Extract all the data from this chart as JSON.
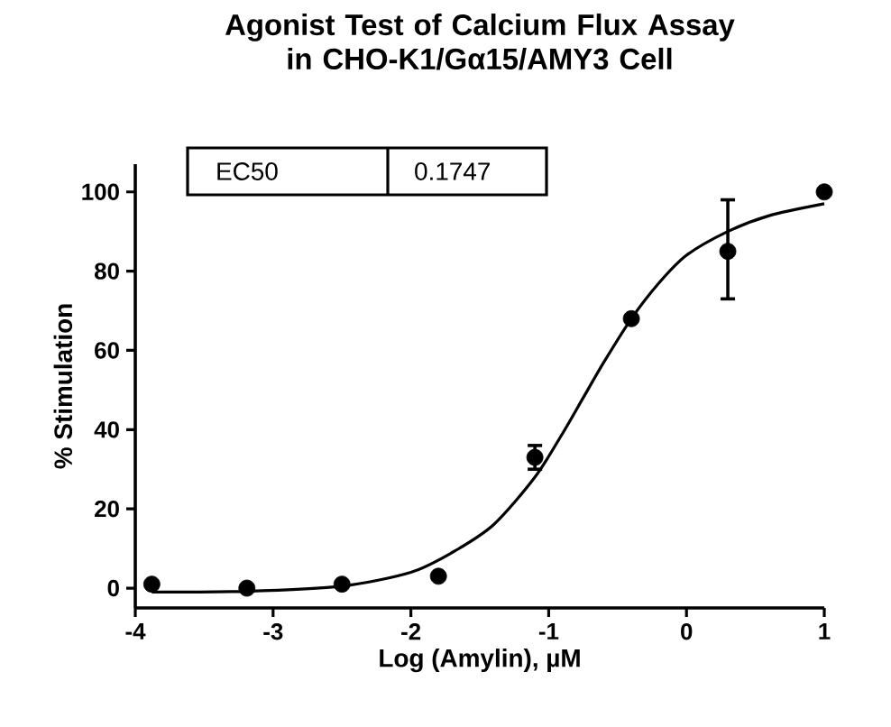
{
  "chart_data": {
    "type": "scatter",
    "title": "Agonist Test of Calcium Flux Assay\nin CHO-K1/Gα15/AMY3  Cell",
    "xlabel": "Log (Amylin), µM",
    "ylabel": "% Stimulation",
    "annotations": [
      "EC50",
      "0.1747"
    ],
    "xlim": [
      -4,
      1
    ],
    "ylim": [
      -5,
      107
    ],
    "xticks": [
      -4,
      -3,
      -2,
      -1,
      0,
      1
    ],
    "yticks": [
      0,
      20,
      40,
      60,
      80,
      100
    ],
    "series": [
      {
        "marker": "circle",
        "color": "#000000",
        "x": [
          -3.88,
          -3.19,
          -2.5,
          -1.8,
          -1.1,
          -0.4,
          0.3,
          1.0
        ],
        "values": [
          1,
          0,
          1,
          3,
          33,
          68,
          85,
          100
        ],
        "errors": [
          null,
          null,
          null,
          null,
          3,
          null,
          [
            73,
            98
          ],
          null
        ]
      },
      {
        "type": "line",
        "marker": "none",
        "color": "#000000",
        "x": [
          -3.88,
          -3.2,
          -2.5,
          -2.0,
          -1.7,
          -1.4,
          -1.1,
          -0.9,
          -0.75,
          -0.6,
          -0.4,
          -0.2,
          0.0,
          0.3,
          0.6,
          1.0
        ],
        "values": [
          -1,
          -0.8,
          0.5,
          4,
          9,
          16,
          28,
          39,
          48,
          57,
          68,
          77,
          84,
          90,
          94,
          97
        ]
      }
    ]
  }
}
